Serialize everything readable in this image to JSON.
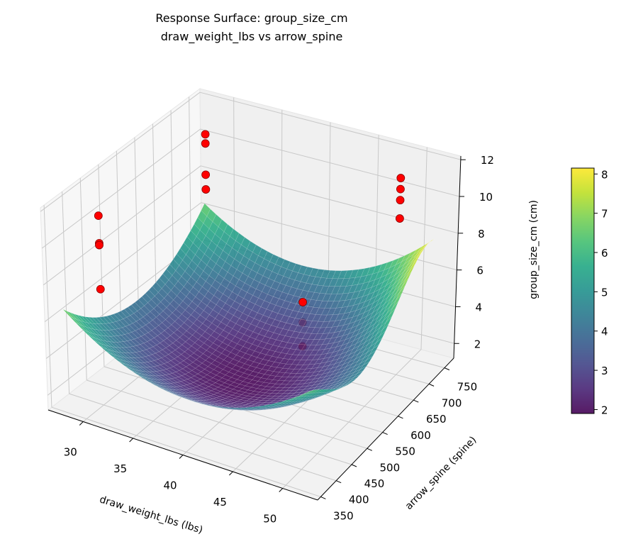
{
  "chart_data": {
    "type": "surface",
    "title": "Response Surface: group_size_cm",
    "subtitle": "draw_weight_lbs vs arrow_spine",
    "xlabel": "draw_weight_lbs (lbs)",
    "ylabel": "arrow_spine (spine)",
    "zlabel": "group_size_cm (cm)",
    "colorbar_label": "group_size_cm (cm)",
    "colormap": "viridis",
    "xlim": [
      26.5,
      53.5
    ],
    "ylim": [
      340,
      780
    ],
    "zlim": [
      1.2,
      12.2
    ],
    "x_ticks": [
      "30",
      "35",
      "40",
      "45",
      "50"
    ],
    "y_ticks": [
      "350",
      "400",
      "450",
      "500",
      "550",
      "600",
      "650",
      "700",
      "750"
    ],
    "z_ticks": [
      "2",
      "4",
      "6",
      "8",
      "10",
      "12"
    ],
    "colorbar_range": [
      1.9,
      8.15
    ],
    "colorbar_ticks": [
      "2",
      "3",
      "4",
      "5",
      "6",
      "7",
      "8"
    ],
    "grid": true,
    "surface": {
      "x": [
        28,
        34,
        40,
        46,
        52
      ],
      "y": [
        350,
        450,
        550,
        650,
        750
      ],
      "z": [
        [
          6.8,
          4.88,
          4.2,
          4.78,
          6.6
        ],
        [
          4.8,
          2.98,
          2.4,
          3.08,
          5.0
        ],
        [
          4.1,
          2.38,
          1.9,
          2.68,
          4.7
        ],
        [
          4.7,
          3.08,
          2.7,
          3.58,
          5.7
        ],
        [
          6.6,
          5.08,
          4.8,
          6.78,
          8.0
        ]
      ]
    },
    "scatter": {
      "color": "#ff0000",
      "points": [
        {
          "x": 30,
          "y": 400,
          "z": 11.5
        },
        {
          "x": 30,
          "y": 400,
          "z": 10.0
        },
        {
          "x": 30,
          "y": 400,
          "z": 9.9
        },
        {
          "x": 30,
          "y": 400,
          "z": 7.5
        },
        {
          "x": 30,
          "y": 700,
          "z": 11.4
        },
        {
          "x": 30,
          "y": 700,
          "z": 10.9
        },
        {
          "x": 30,
          "y": 700,
          "z": 9.2
        },
        {
          "x": 30,
          "y": 700,
          "z": 8.4
        },
        {
          "x": 50,
          "y": 700,
          "z": 11.9
        },
        {
          "x": 50,
          "y": 700,
          "z": 11.3
        },
        {
          "x": 50,
          "y": 700,
          "z": 10.7
        },
        {
          "x": 50,
          "y": 700,
          "z": 9.7
        },
        {
          "x": 50,
          "y": 400,
          "z": 10.3
        },
        {
          "x": 50,
          "y": 400,
          "z": 9.2
        },
        {
          "x": 50,
          "y": 400,
          "z": 7.9
        }
      ]
    }
  }
}
